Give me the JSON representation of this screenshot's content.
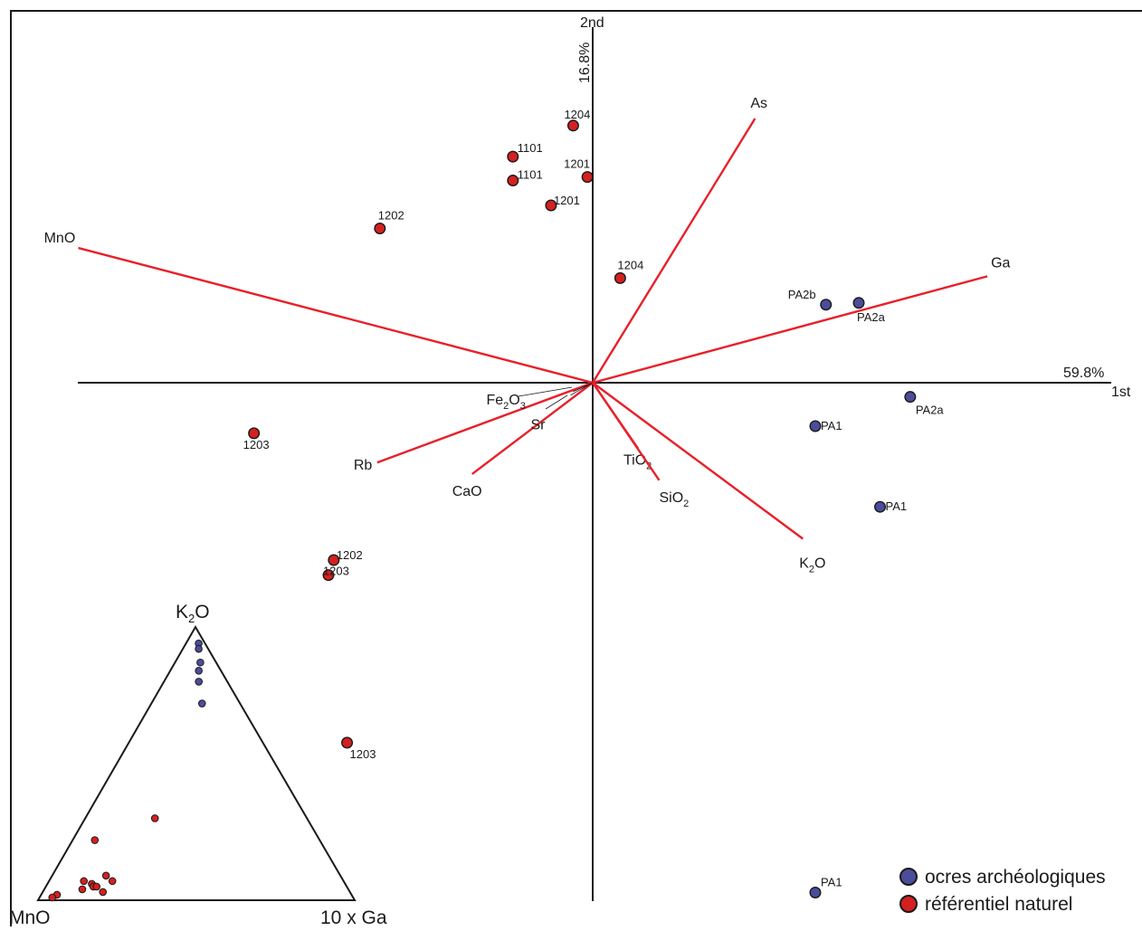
{
  "chart_data": {
    "type": "scatter",
    "subtype": "pca-biplot",
    "x_axis": {
      "label": "1st",
      "variance": "59.8%"
    },
    "y_axis": {
      "label": "2nd",
      "variance": "16.8%"
    },
    "xlim": [
      -5.8,
      5.8
    ],
    "ylim": [
      -5.8,
      4.05
    ],
    "loadings": [
      {
        "name": "MnO",
        "base": "MnO",
        "sub": "",
        "x": -5.8,
        "y": 1.52
      },
      {
        "name": "As",
        "base": "As",
        "sub": "",
        "x": 1.83,
        "y": 2.98
      },
      {
        "name": "Ga",
        "base": "Ga",
        "sub": "",
        "x": 4.45,
        "y": 1.2
      },
      {
        "name": "Rb",
        "base": "Rb",
        "sub": "",
        "x": -2.43,
        "y": -0.9
      },
      {
        "name": "CaO",
        "base": "CaO",
        "sub": "",
        "x": -1.36,
        "y": -1.03
      },
      {
        "name": "Fe2O3",
        "base": "Fe",
        "sub": "2",
        "base2": "O",
        "sub2": "3",
        "x": -0.22,
        "y": -0.1
      },
      {
        "name": "Sr",
        "base": "Sr",
        "sub": "",
        "x": -0.25,
        "y": -0.14
      },
      {
        "name": "TiO2",
        "base": "TiO",
        "sub": "2",
        "x": 0.51,
        "y": -0.74
      },
      {
        "name": "SiO2",
        "base": "SiO",
        "sub": "2",
        "x": 0.75,
        "y": -1.1
      },
      {
        "name": "K2O",
        "base": "K",
        "sub": "2",
        "base2": "O",
        "sub2": "",
        "x": 2.37,
        "y": -1.76
      }
    ],
    "series": [
      {
        "name": "ocres archéologiques",
        "color": "#4b4d9a",
        "points": [
          {
            "label": "PA2b",
            "x": 2.63,
            "y": 0.88
          },
          {
            "label": "PA2a",
            "x": 3.0,
            "y": 0.9
          },
          {
            "label": "PA2a",
            "x": 3.58,
            "y": -0.16
          },
          {
            "label": "PA1",
            "x": 2.51,
            "y": -0.49
          },
          {
            "label": "PA1",
            "x": 3.24,
            "y": -1.4
          },
          {
            "label": "PA1",
            "x": 2.51,
            "y": -5.75
          }
        ]
      },
      {
        "name": "référentiel naturel",
        "color": "#d42020",
        "points": [
          {
            "label": "1204",
            "x": -0.22,
            "y": 2.9
          },
          {
            "label": "1101",
            "x": -0.9,
            "y": 2.55
          },
          {
            "label": "1101",
            "x": -0.9,
            "y": 2.28
          },
          {
            "label": "1201",
            "x": -0.06,
            "y": 2.32
          },
          {
            "label": "1201",
            "x": -0.47,
            "y": 2.0
          },
          {
            "label": "1202",
            "x": -2.4,
            "y": 1.74
          },
          {
            "label": "1204",
            "x": 0.31,
            "y": 1.18
          },
          {
            "label": "1203",
            "x": -3.82,
            "y": -0.57
          },
          {
            "label": "1202",
            "x": -2.92,
            "y": -2.0
          },
          {
            "label": "1203",
            "x": -2.98,
            "y": -2.17
          },
          {
            "label": "1203",
            "x": -2.77,
            "y": -4.06
          }
        ]
      }
    ],
    "ternary": {
      "vertices": {
        "top": "K2O",
        "left": "MnO",
        "right": "10 x Ga"
      },
      "top_label": {
        "base": "K",
        "sub": "2",
        "base2": "O"
      },
      "left_label": "MnO",
      "right_label": "10 x Ga",
      "points": [
        {
          "series": "ocres archéologiques",
          "k2o": 0.94,
          "ga": 0.04
        },
        {
          "series": "ocres archéologiques",
          "k2o": 0.92,
          "ga": 0.05
        },
        {
          "series": "ocres archéologiques",
          "k2o": 0.87,
          "ga": 0.08
        },
        {
          "series": "ocres archéologiques",
          "k2o": 0.84,
          "ga": 0.09
        },
        {
          "series": "ocres archéologiques",
          "k2o": 0.8,
          "ga": 0.11
        },
        {
          "series": "ocres archéologiques",
          "k2o": 0.72,
          "ga": 0.16
        },
        {
          "series": "référentiel naturel",
          "k2o": 0.3,
          "ga": 0.22
        },
        {
          "series": "référentiel naturel",
          "k2o": 0.22,
          "ga": 0.07
        },
        {
          "series": "référentiel naturel",
          "k2o": 0.09,
          "ga": 0.17
        },
        {
          "series": "référentiel naturel",
          "k2o": 0.07,
          "ga": 0.11
        },
        {
          "series": "référentiel naturel",
          "k2o": 0.07,
          "ga": 0.2
        },
        {
          "series": "référentiel naturel",
          "k2o": 0.06,
          "ga": 0.14
        },
        {
          "series": "référentiel naturel",
          "k2o": 0.05,
          "ga": 0.15
        },
        {
          "series": "référentiel naturel",
          "k2o": 0.05,
          "ga": 0.16
        },
        {
          "series": "référentiel naturel",
          "k2o": 0.04,
          "ga": 0.12
        },
        {
          "series": "référentiel naturel",
          "k2o": 0.03,
          "ga": 0.19
        },
        {
          "series": "référentiel naturel",
          "k2o": 0.02,
          "ga": 0.05
        },
        {
          "series": "référentiel naturel",
          "k2o": 0.01,
          "ga": 0.04
        }
      ]
    },
    "legend": {
      "placement": "bottom-right",
      "entries": [
        {
          "label": "ocres archéologiques",
          "color": "#4b4d9a"
        },
        {
          "label": "référentiel naturel",
          "color": "#d42020"
        }
      ]
    },
    "colors": {
      "loading": "#e8202a",
      "axis": "#1a1a1a"
    }
  }
}
